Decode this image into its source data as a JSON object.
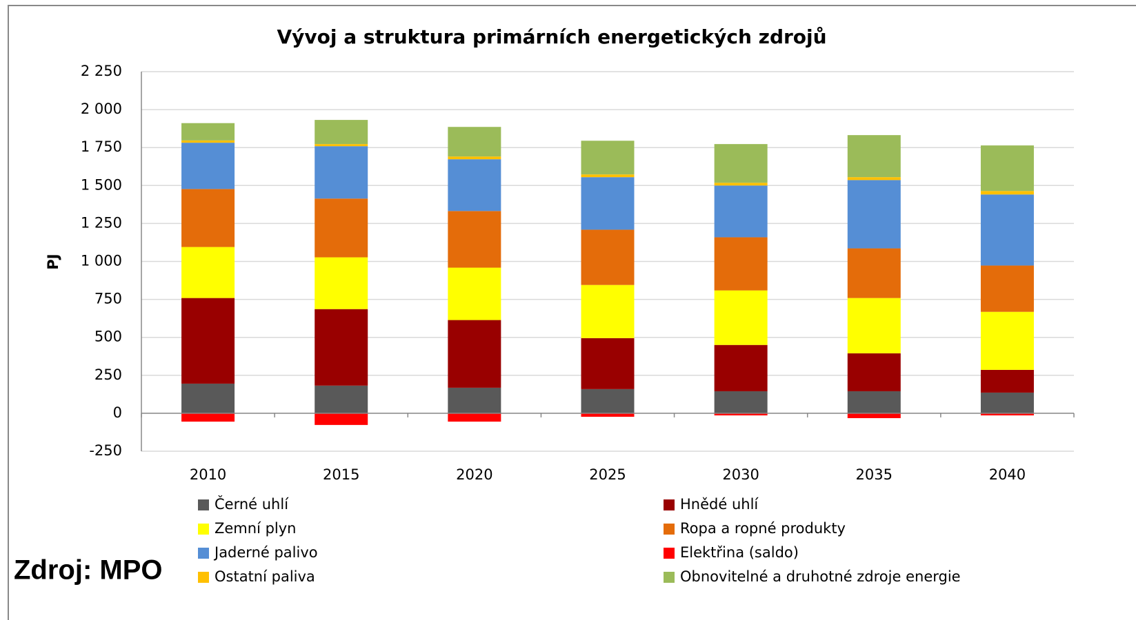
{
  "chart_data": {
    "type": "stacked_bar",
    "title": "Vývoj a struktura primárních energetických zdrojů",
    "ylabel": "PJ",
    "annotation": "Zdroj: MPO",
    "categories": [
      "2010",
      "2015",
      "2020",
      "2025",
      "2030",
      "2035",
      "2040"
    ],
    "ylim": [
      -250,
      2250
    ],
    "yticks": [
      -250,
      0,
      250,
      500,
      750,
      {
        "value": 1000,
        "label": "1 000"
      },
      {
        "value": 1250,
        "label": "1 250"
      },
      {
        "value": 1500,
        "label": "1 500"
      },
      {
        "value": 1750,
        "label": "1 750"
      },
      {
        "value": 2000,
        "label": "2 000"
      },
      {
        "value": 2250,
        "label": "2 250"
      }
    ],
    "grid": true,
    "series": [
      {
        "name": "Černé uhlí",
        "color": "#595959",
        "values": [
          195,
          182,
          168,
          159,
          145,
          145,
          136
        ]
      },
      {
        "name": "Hnědé uhlí",
        "color": "#990000",
        "values": [
          564,
          504,
          446,
          336,
          305,
          250,
          150
        ]
      },
      {
        "name": "Zemní plyn",
        "color": "#ffff00",
        "values": [
          336,
          341,
          345,
          350,
          359,
          364,
          382
        ]
      },
      {
        "name": "Ropa a ropné produkty",
        "color": "#e46c0a",
        "values": [
          382,
          387,
          373,
          364,
          350,
          327,
          305
        ]
      },
      {
        "name": "Jaderné palivo",
        "color": "#558ed5",
        "values": [
          305,
          345,
          341,
          346,
          341,
          450,
          468
        ]
      },
      {
        "name": "Elektřina (saldo)",
        "color": "#ff0000",
        "values": [
          -55,
          -77,
          -55,
          -23,
          -14,
          -32,
          -14
        ]
      },
      {
        "name": "Ostatní paliva",
        "color": "#ffc000",
        "values": [
          15,
          14,
          18,
          18,
          18,
          19,
          23
        ]
      },
      {
        "name": "Obnovitelné a druhotné zdroje energie",
        "color": "#9bbb59",
        "values": [
          114,
          159,
          195,
          222,
          255,
          277,
          300
        ]
      }
    ]
  }
}
